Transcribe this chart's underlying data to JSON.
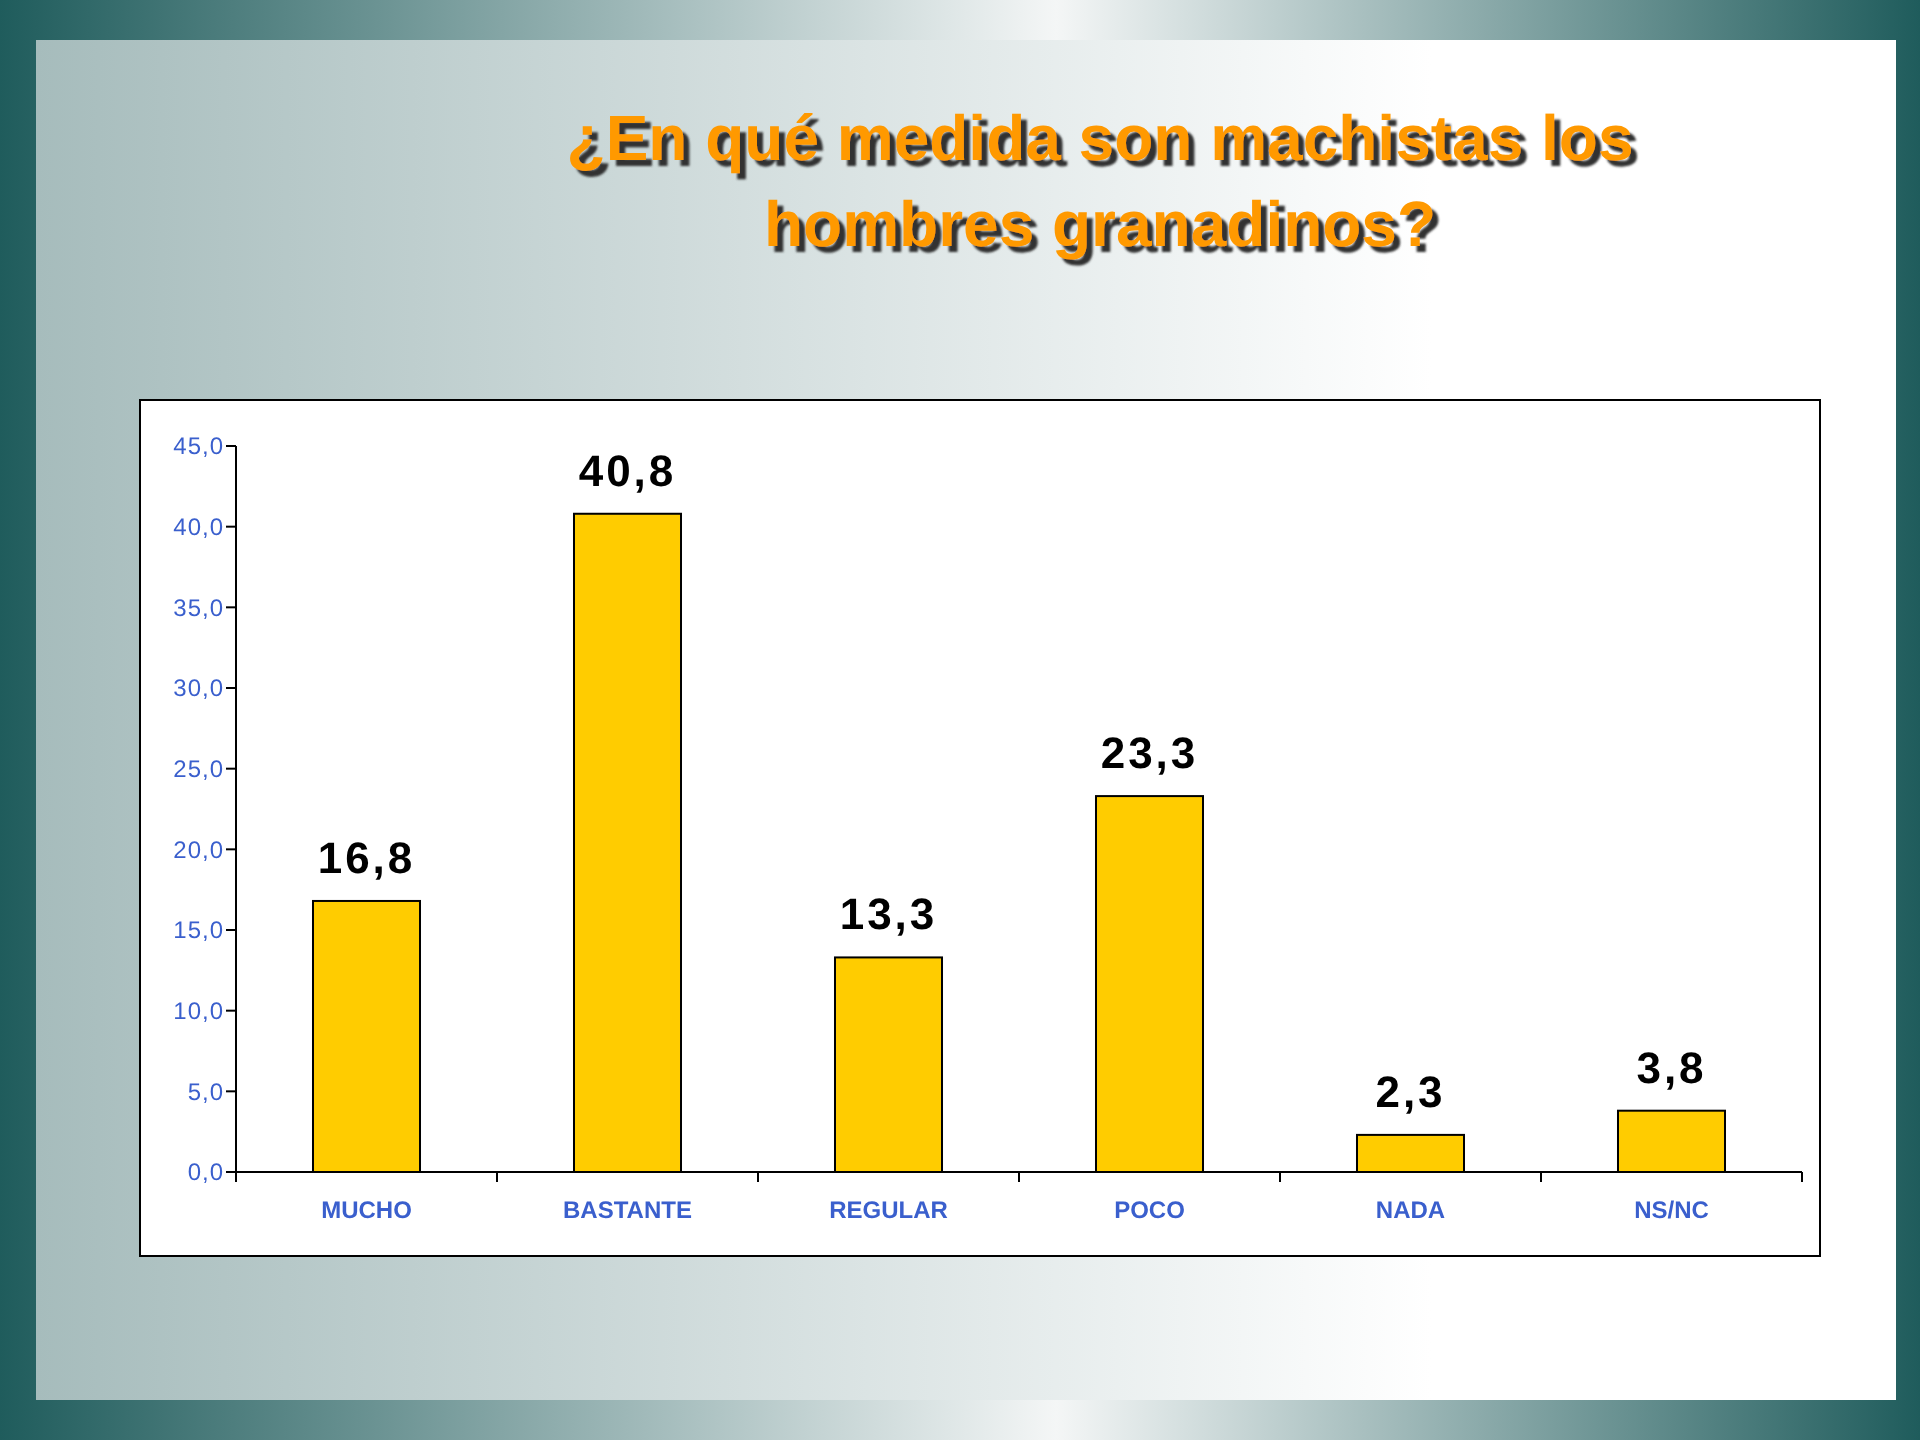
{
  "chart_data": {
    "type": "bar",
    "title": "¿En qué medida son machistas los hombres granadinos?",
    "categories": [
      "MUCHO",
      "BASTANTE",
      "REGULAR",
      "POCO",
      "NADA",
      "NS/NC"
    ],
    "values": [
      16.8,
      40.8,
      13.3,
      23.3,
      2.3,
      3.8
    ],
    "value_labels": [
      "16,8",
      "40,8",
      "13,3",
      "23,3",
      "2,3",
      "3,8"
    ],
    "color": "#ffcc00",
    "ylim": [
      0,
      45
    ],
    "yticks": [
      {
        "value": 0,
        "label": "0,0"
      },
      {
        "value": 5,
        "label": "5,0"
      },
      {
        "value": 10,
        "label": "10,0"
      },
      {
        "value": 15,
        "label": "15,0"
      },
      {
        "value": 20,
        "label": "20,0"
      },
      {
        "value": 25,
        "label": "25,0"
      },
      {
        "value": 30,
        "label": "30,0"
      },
      {
        "value": 35,
        "label": "35,0"
      },
      {
        "value": 40,
        "label": "40,0"
      },
      {
        "value": 45,
        "label": "45,0"
      }
    ]
  }
}
